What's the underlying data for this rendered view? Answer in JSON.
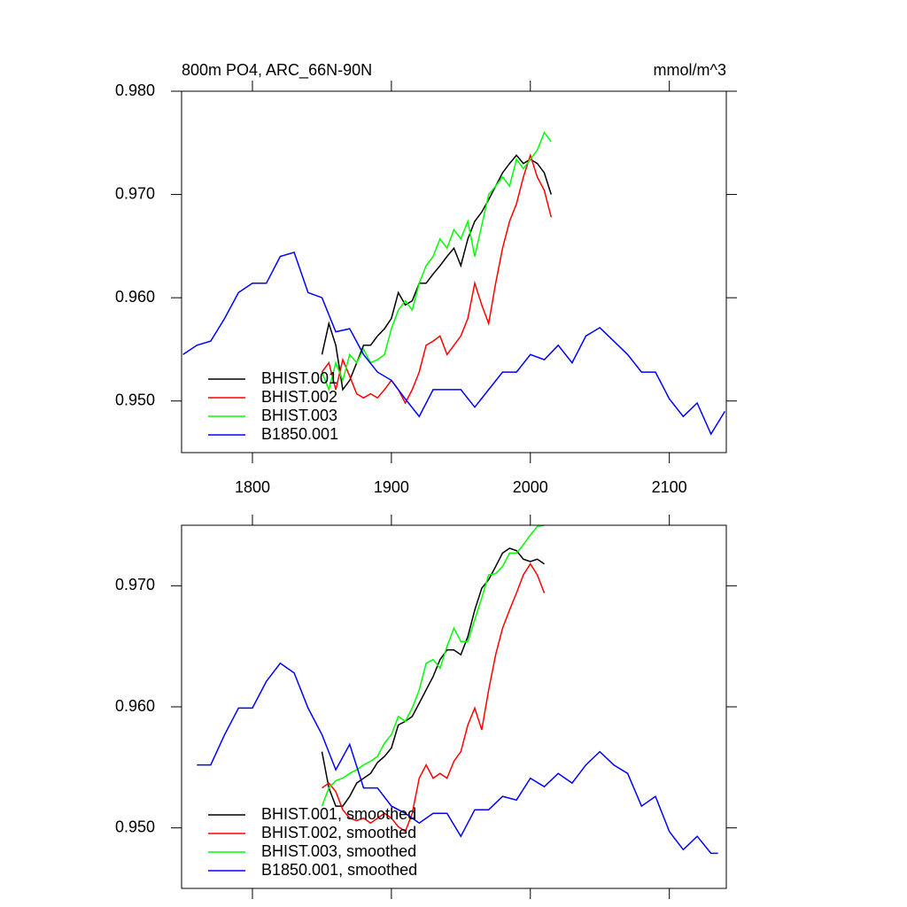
{
  "chart_data": [
    {
      "type": "line",
      "title": "800m PO4, ARC_66N-90N",
      "units": "mmol/m^3",
      "xlim": [
        1749,
        2141
      ],
      "xticks": [
        1800,
        1900,
        2000,
        2100
      ],
      "xtick_labels": true,
      "ylim": [
        0.945,
        0.98
      ],
      "yticks": [
        {
          "value": 0.95,
          "label": "0.950"
        },
        {
          "value": 0.96,
          "label": "0.960"
        },
        {
          "value": 0.97,
          "label": "0.970"
        },
        {
          "value": 0.98,
          "label": "0.980"
        }
      ],
      "legend": "lower left",
      "series": [
        {
          "name": "BHIST.001",
          "color": "#000000",
          "x": [
            1850,
            1855,
            1860,
            1865,
            1870,
            1875,
            1880,
            1885,
            1890,
            1895,
            1900,
            1905,
            1910,
            1915,
            1920,
            1925,
            1930,
            1935,
            1940,
            1945,
            1950,
            1955,
            1960,
            1965,
            1970,
            1975,
            1980,
            1985,
            1990,
            1995,
            2000,
            2005,
            2010,
            2015
          ],
          "values": [
            0.9545,
            0.9575,
            0.9554,
            0.9511,
            0.952,
            0.9537,
            0.9554,
            0.9554,
            0.9563,
            0.957,
            0.958,
            0.9605,
            0.9593,
            0.9597,
            0.9614,
            0.9614,
            0.9623,
            0.9631,
            0.964,
            0.9648,
            0.9631,
            0.9657,
            0.9674,
            0.9683,
            0.9695,
            0.9708,
            0.9721,
            0.973,
            0.9738,
            0.973,
            0.9734,
            0.973,
            0.9721,
            0.97
          ]
        },
        {
          "name": "BHIST.002",
          "color": "#ff0000",
          "x": [
            1850,
            1855,
            1860,
            1865,
            1870,
            1875,
            1880,
            1885,
            1890,
            1895,
            1900,
            1905,
            1910,
            1915,
            1920,
            1925,
            1930,
            1935,
            1940,
            1945,
            1950,
            1955,
            1960,
            1965,
            1970,
            1975,
            1980,
            1985,
            1990,
            1995,
            2000,
            2005,
            2010,
            2015
          ],
          "values": [
            0.9528,
            0.9537,
            0.9511,
            0.954,
            0.9524,
            0.9507,
            0.9503,
            0.9507,
            0.9503,
            0.9511,
            0.952,
            0.9511,
            0.9498,
            0.9511,
            0.9528,
            0.9554,
            0.9558,
            0.9563,
            0.9545,
            0.9554,
            0.9563,
            0.958,
            0.9614,
            0.9593,
            0.9575,
            0.9614,
            0.9648,
            0.9674,
            0.9691,
            0.9717,
            0.9738,
            0.9717,
            0.9704,
            0.9678
          ]
        },
        {
          "name": "BHIST.003",
          "color": "#00ff00",
          "x": [
            1850,
            1855,
            1860,
            1865,
            1870,
            1875,
            1880,
            1885,
            1890,
            1895,
            1900,
            1905,
            1910,
            1915,
            1920,
            1925,
            1930,
            1935,
            1940,
            1945,
            1950,
            1955,
            1960,
            1965,
            1970,
            1975,
            1980,
            1985,
            1990,
            1995,
            2000,
            2005,
            2010,
            2015
          ],
          "values": [
            0.9528,
            0.9511,
            0.9537,
            0.952,
            0.9545,
            0.9537,
            0.955,
            0.9537,
            0.954,
            0.9545,
            0.957,
            0.9588,
            0.9597,
            0.9588,
            0.9614,
            0.9631,
            0.964,
            0.9657,
            0.9648,
            0.9666,
            0.9657,
            0.9674,
            0.964,
            0.967,
            0.97,
            0.9708,
            0.9717,
            0.9708,
            0.9734,
            0.9725,
            0.9734,
            0.9743,
            0.976,
            0.9751
          ]
        },
        {
          "name": "B1850.001",
          "color": "#0000ff",
          "x": [
            1750,
            1760,
            1770,
            1780,
            1790,
            1800,
            1810,
            1820,
            1830,
            1840,
            1850,
            1860,
            1870,
            1880,
            1890,
            1900,
            1910,
            1920,
            1930,
            1940,
            1950,
            1960,
            1970,
            1980,
            1990,
            2000,
            2010,
            2020,
            2030,
            2040,
            2050,
            2060,
            2070,
            2080,
            2090,
            2100,
            2110,
            2120,
            2130,
            2140
          ],
          "values": [
            0.9545,
            0.9554,
            0.9558,
            0.958,
            0.9605,
            0.9614,
            0.9614,
            0.964,
            0.9644,
            0.9605,
            0.96,
            0.9567,
            0.957,
            0.9545,
            0.9528,
            0.952,
            0.9502,
            0.9485,
            0.9511,
            0.9511,
            0.9511,
            0.9494,
            0.9511,
            0.9528,
            0.9528,
            0.9545,
            0.954,
            0.9554,
            0.9537,
            0.9563,
            0.9571,
            0.9558,
            0.9545,
            0.9528,
            0.9528,
            0.9502,
            0.9485,
            0.9498,
            0.9468,
            0.949
          ]
        }
      ]
    },
    {
      "type": "line",
      "xlim": [
        1749,
        2141
      ],
      "xticks": [
        1800,
        1900,
        2000,
        2100
      ],
      "xtick_labels": false,
      "ylim": [
        0.945,
        0.975
      ],
      "yticks": [
        {
          "value": 0.95,
          "label": "0.950"
        },
        {
          "value": 0.96,
          "label": "0.960"
        },
        {
          "value": 0.97,
          "label": "0.970"
        }
      ],
      "legend": "lower left",
      "series": [
        {
          "name": "BHIST.001, smoothed",
          "color": "#000000",
          "x": [
            1850,
            1855,
            1860,
            1865,
            1870,
            1875,
            1880,
            1885,
            1890,
            1895,
            1900,
            1905,
            1910,
            1915,
            1920,
            1925,
            1930,
            1935,
            1940,
            1945,
            1950,
            1955,
            1960,
            1965,
            1970,
            1975,
            1980,
            1985,
            1990,
            1995,
            2000,
            2005,
            2010
          ],
          "values": [
            0.9563,
            0.9533,
            0.9518,
            0.9518,
            0.9526,
            0.9537,
            0.9541,
            0.9545,
            0.9554,
            0.9559,
            0.9566,
            0.9585,
            0.9588,
            0.9592,
            0.9603,
            0.9614,
            0.9625,
            0.9639,
            0.9647,
            0.9647,
            0.9643,
            0.9658,
            0.968,
            0.9698,
            0.9705,
            0.9716,
            0.9727,
            0.9731,
            0.9729,
            0.9722,
            0.972,
            0.9722,
            0.9718
          ]
        },
        {
          "name": "BHIST.002, smoothed",
          "color": "#ff0000",
          "x": [
            1850,
            1855,
            1860,
            1865,
            1870,
            1875,
            1880,
            1885,
            1890,
            1895,
            1900,
            1905,
            1910,
            1915,
            1920,
            1925,
            1930,
            1935,
            1940,
            1945,
            1950,
            1955,
            1960,
            1965,
            1970,
            1975,
            1980,
            1985,
            1990,
            1995,
            2000,
            2005,
            2010
          ],
          "values": [
            0.9533,
            0.9537,
            0.953,
            0.9515,
            0.9508,
            0.9506,
            0.9508,
            0.9504,
            0.9508,
            0.9512,
            0.9508,
            0.9501,
            0.9497,
            0.9512,
            0.9541,
            0.9552,
            0.9541,
            0.9545,
            0.9541,
            0.9555,
            0.9563,
            0.9585,
            0.9599,
            0.9581,
            0.9614,
            0.9643,
            0.9665,
            0.968,
            0.9694,
            0.9709,
            0.9718,
            0.9709,
            0.9694
          ]
        },
        {
          "name": "BHIST.003, smoothed",
          "color": "#00ff00",
          "x": [
            1850,
            1855,
            1860,
            1865,
            1870,
            1875,
            1880,
            1885,
            1890,
            1895,
            1900,
            1905,
            1910,
            1915,
            1920,
            1925,
            1930,
            1935,
            1940,
            1945,
            1950,
            1955,
            1960,
            1965,
            1970,
            1975,
            1980,
            1985,
            1990,
            1995,
            2000,
            2005,
            2010
          ],
          "values": [
            0.9518,
            0.9533,
            0.9539,
            0.9541,
            0.9545,
            0.9548,
            0.9552,
            0.9555,
            0.9559,
            0.957,
            0.9577,
            0.9592,
            0.9588,
            0.9599,
            0.9614,
            0.9636,
            0.9639,
            0.9632,
            0.965,
            0.9665,
            0.9654,
            0.9654,
            0.9672,
            0.969,
            0.9709,
            0.971,
            0.9716,
            0.9727,
            0.9727,
            0.9734,
            0.9742,
            0.9749,
            0.975
          ]
        },
        {
          "name": "B1850.001, smoothed",
          "color": "#0000ff",
          "x": [
            1760,
            1770,
            1780,
            1790,
            1800,
            1810,
            1820,
            1830,
            1840,
            1850,
            1860,
            1870,
            1880,
            1890,
            1900,
            1910,
            1920,
            1930,
            1940,
            1950,
            1960,
            1970,
            1980,
            1990,
            2000,
            2010,
            2020,
            2030,
            2040,
            2050,
            2060,
            2070,
            2080,
            2090,
            2100,
            2110,
            2120,
            2130,
            2135
          ],
          "values": [
            0.9552,
            0.9552,
            0.9577,
            0.9599,
            0.9599,
            0.9621,
            0.9636,
            0.9628,
            0.9599,
            0.9577,
            0.9548,
            0.9569,
            0.9533,
            0.9533,
            0.9518,
            0.9512,
            0.9504,
            0.9512,
            0.9512,
            0.9493,
            0.9515,
            0.9515,
            0.9526,
            0.9523,
            0.9541,
            0.9534,
            0.9545,
            0.9537,
            0.9552,
            0.9563,
            0.9552,
            0.9545,
            0.9518,
            0.9526,
            0.9497,
            0.9482,
            0.9493,
            0.9479,
            0.9479
          ]
        }
      ]
    }
  ]
}
